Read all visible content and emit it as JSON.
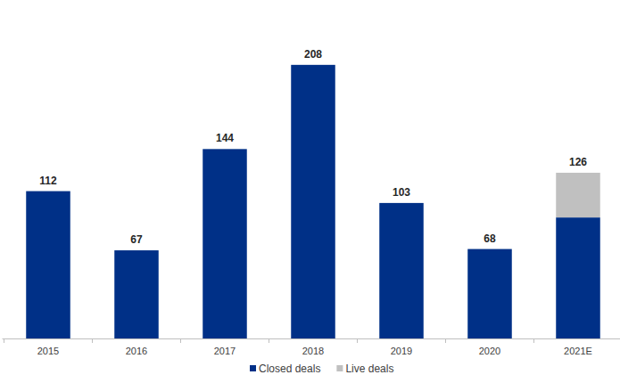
{
  "chart_data": {
    "type": "bar",
    "stacked": true,
    "categories": [
      "2015",
      "2016",
      "2017",
      "2018",
      "2019",
      "2020",
      "2021E"
    ],
    "series": [
      {
        "name": "Closed deals",
        "color": "#003087",
        "values": [
          112,
          67,
          144,
          208,
          103,
          68,
          92
        ]
      },
      {
        "name": "Live deals",
        "color": "#c0c0c0",
        "values": [
          null,
          null,
          null,
          null,
          null,
          null,
          34
        ]
      }
    ],
    "totals": [
      112,
      67,
      144,
      208,
      103,
      68,
      126
    ],
    "ylim": [
      0,
      237
    ],
    "grid": false,
    "legend": "bottom",
    "tick_labels": "x"
  }
}
